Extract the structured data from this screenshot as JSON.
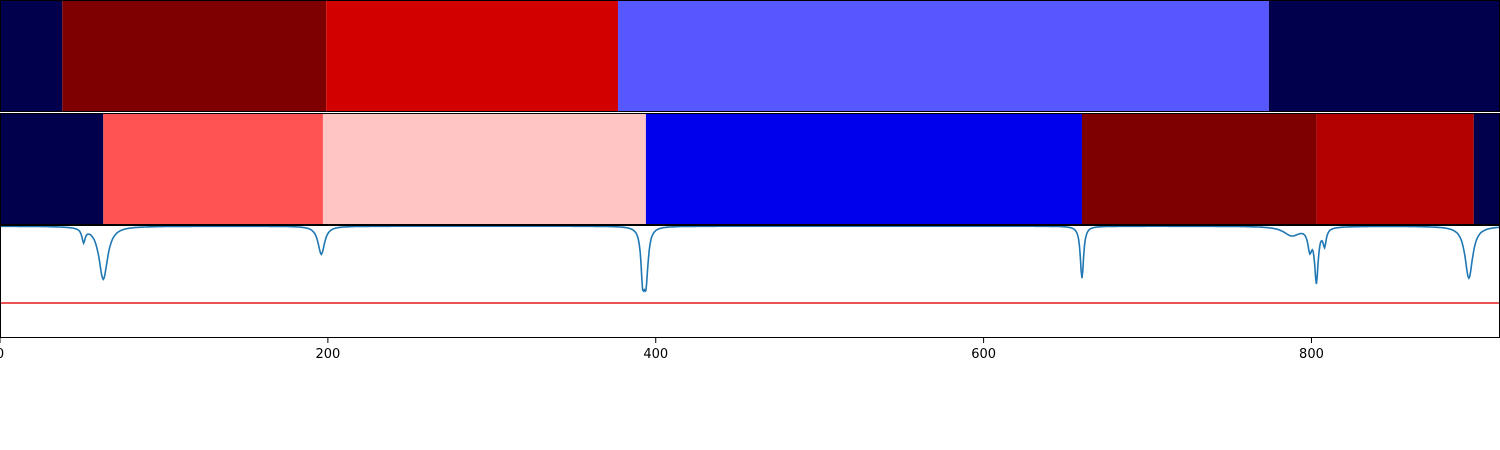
{
  "chart_data": [
    {
      "type": "heatmap",
      "title": "",
      "xlim": [
        0,
        915
      ],
      "segments": [
        {
          "start": 0,
          "end": 38,
          "color": "#00004c"
        },
        {
          "start": 38,
          "end": 199,
          "color": "#7f0000"
        },
        {
          "start": 199,
          "end": 377,
          "color": "#d30000"
        },
        {
          "start": 377,
          "end": 774,
          "color": "#5757ff"
        },
        {
          "start": 774,
          "end": 915,
          "color": "#00004c"
        }
      ]
    },
    {
      "type": "heatmap",
      "title": "",
      "xlim": [
        0,
        915
      ],
      "segments": [
        {
          "start": 0,
          "end": 63,
          "color": "#00004c"
        },
        {
          "start": 63,
          "end": 197,
          "color": "#ff5353"
        },
        {
          "start": 197,
          "end": 394,
          "color": "#ffc5c5"
        },
        {
          "start": 394,
          "end": 660,
          "color": "#0000ec"
        },
        {
          "start": 660,
          "end": 803,
          "color": "#7f0000"
        },
        {
          "start": 803,
          "end": 899,
          "color": "#b30000"
        },
        {
          "start": 899,
          "end": 915,
          "color": "#00004c"
        }
      ]
    },
    {
      "type": "line",
      "title": "",
      "xlabel": "",
      "ylabel": "",
      "xlim": [
        0,
        915
      ],
      "ylim": [
        0,
        1
      ],
      "xticks": [
        0,
        200,
        400,
        600,
        800
      ],
      "threshold": {
        "value": 0.31,
        "color": "#e41a1c"
      },
      "series": [
        {
          "color": "#1f77b4",
          "baseline": 0.99,
          "dips": [
            {
              "x": 51,
              "depth": 0.12,
              "width": 1.2
            },
            {
              "x": 63,
              "depth": 0.47,
              "width": 3.2
            },
            {
              "x": 196,
              "depth": 0.25,
              "width": 2.4
            },
            {
              "x": 392,
              "depth": 0.38,
              "width": 1.2
            },
            {
              "x": 394,
              "depth": 0.47,
              "width": 1.6
            },
            {
              "x": 660,
              "depth": 0.46,
              "width": 1.2
            },
            {
              "x": 788,
              "depth": 0.08,
              "width": 6
            },
            {
              "x": 799,
              "depth": 0.18,
              "width": 1.5
            },
            {
              "x": 803,
              "depth": 0.47,
              "width": 1.3
            },
            {
              "x": 808,
              "depth": 0.15,
              "width": 1.2
            },
            {
              "x": 896,
              "depth": 0.46,
              "width": 2.8
            }
          ]
        }
      ]
    }
  ]
}
